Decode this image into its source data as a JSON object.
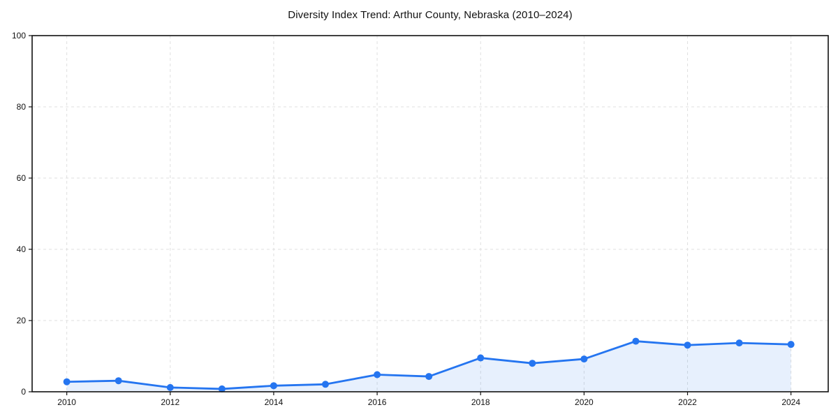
{
  "chart_data": {
    "type": "line",
    "title": "Diversity Index Trend: Arthur County, Nebraska (2010–2024)",
    "x": [
      2010,
      2011,
      2012,
      2013,
      2014,
      2015,
      2016,
      2017,
      2018,
      2019,
      2020,
      2021,
      2022,
      2023,
      2024
    ],
    "series": [
      {
        "name": "Diversity Index",
        "values": [
          2.8,
          3.1,
          1.2,
          0.8,
          1.7,
          2.1,
          4.8,
          4.3,
          9.5,
          8.0,
          9.2,
          14.2,
          13.1,
          13.7,
          13.3
        ]
      }
    ],
    "xlabel": "",
    "ylabel": "",
    "xticks": {
      "values": [
        2010,
        2012,
        2014,
        2016,
        2018,
        2020,
        2022,
        2024
      ],
      "labels": [
        "2010",
        "2012",
        "2014",
        "2016",
        "2018",
        "2020",
        "2022",
        "2024"
      ]
    },
    "yticks": {
      "values": [
        0,
        20,
        40,
        60,
        80,
        100
      ],
      "labels": [
        "0",
        "20",
        "40",
        "60",
        "80",
        "100"
      ]
    },
    "xlim": [
      2009.33,
      2024.72
    ],
    "ylim": [
      0,
      100
    ],
    "grid": true,
    "grid_style": "dashed",
    "legend": "none",
    "area_fill": true,
    "colors": {
      "line": "#2575f0",
      "marker": "#2575f0",
      "area_fill": "rgba(37, 117, 240, 0.11)",
      "grid": "#dfdfdf",
      "spine": "#111111",
      "tick": "#111111",
      "text": "#111111",
      "background": "#ffffff"
    },
    "marker_radius": 5,
    "line_width": 2.8
  }
}
